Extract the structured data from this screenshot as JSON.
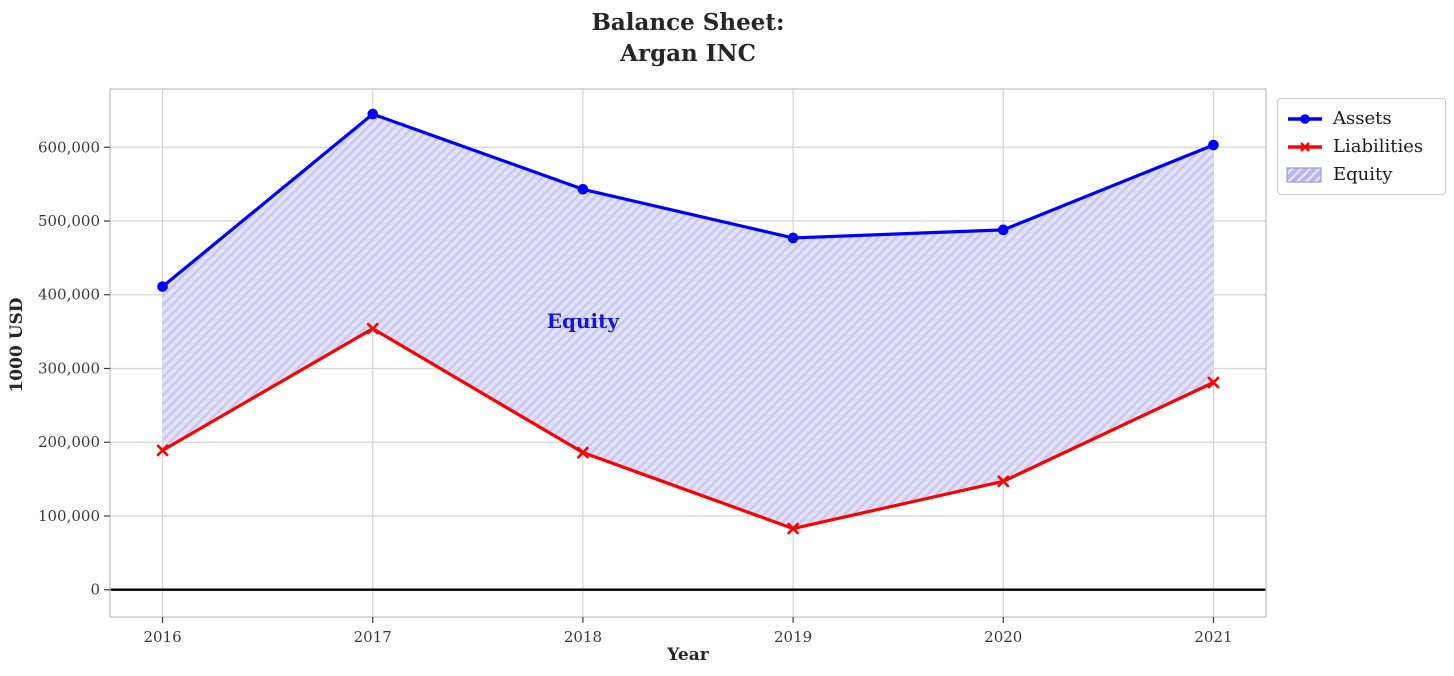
{
  "chart_data": {
    "type": "line",
    "title_lines": [
      "Balance Sheet:",
      "Argan INC"
    ],
    "xlabel": "Year",
    "ylabel": "1000 USD",
    "x": [
      2016,
      2017,
      2018,
      2019,
      2020,
      2021
    ],
    "series": [
      {
        "name": "Assets",
        "color": "#0000ff",
        "marker": "circle",
        "values": [
          411000,
          645000,
          543000,
          477000,
          488000,
          603000
        ]
      },
      {
        "name": "Liabilities",
        "color": "#ff0000",
        "marker": "x",
        "values": [
          189000,
          354000,
          186000,
          83000,
          147000,
          281000
        ]
      }
    ],
    "area": {
      "name": "Equity",
      "between": [
        "Liabilities",
        "Assets"
      ],
      "legend_label": "Equity"
    },
    "annotation": {
      "text": "Equity",
      "x": 2018,
      "y": 365000,
      "color": "#1414e0"
    },
    "y_ticks": [
      0,
      100000,
      200000,
      300000,
      400000,
      500000,
      600000
    ],
    "ylim": [
      -37000,
      679000
    ],
    "xlim": [
      2015.75,
      2021.25
    ],
    "grid": true,
    "zero_line": true,
    "legend_position": "outside-top-right",
    "colors": {
      "assets": "#0000ff",
      "liabilities": "#ff0000",
      "equity_fill": "#e1e1f7",
      "equity_hatch": "#c9c9f0",
      "legend_patch_fill": "#b7b7ee",
      "legend_patch_hatch": "#e8e8fb",
      "legend_patch_edge": "#9d9de0",
      "grid": "#d4d4d4",
      "spine": "#c9c9c9",
      "zero_line": "#000000",
      "tick": "#3a3a3a"
    }
  }
}
